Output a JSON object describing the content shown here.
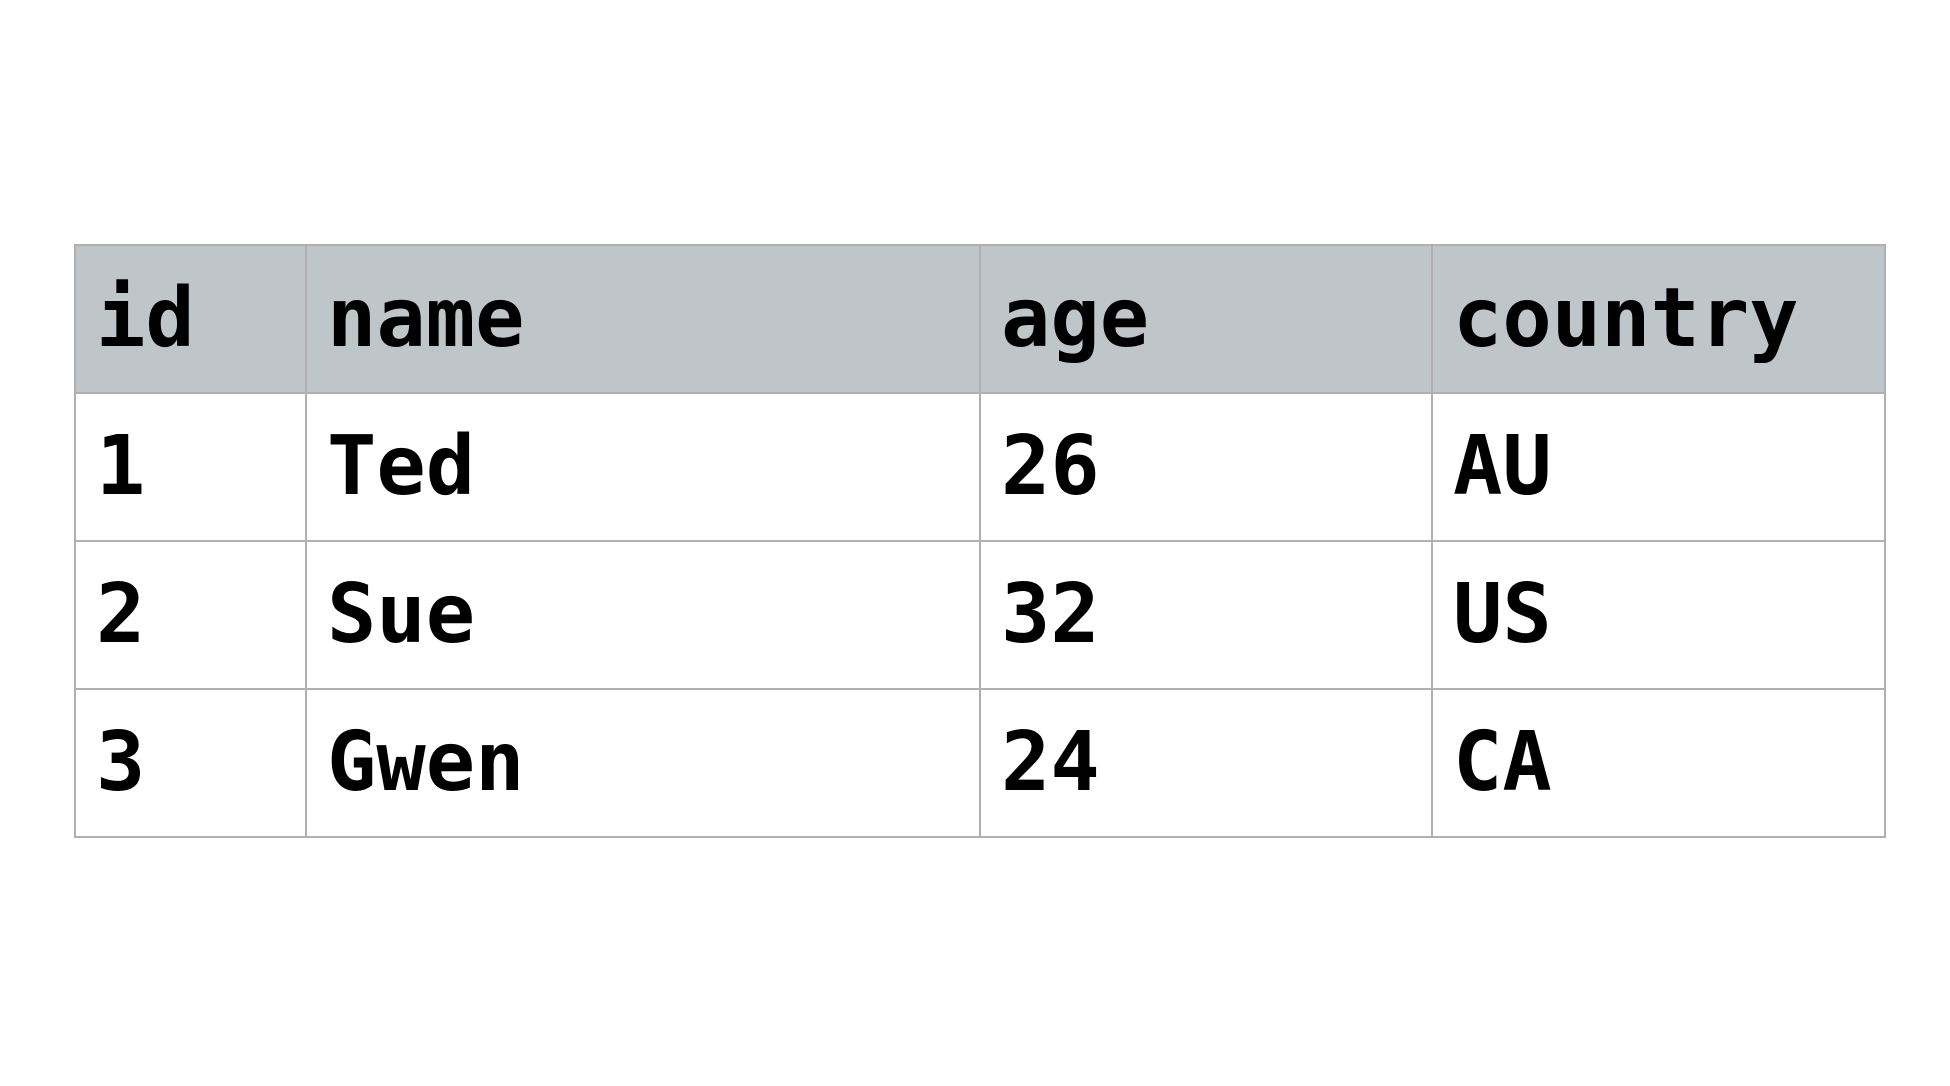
{
  "table": {
    "columns": [
      "id",
      "name",
      "age",
      "country"
    ],
    "rows": [
      [
        "1",
        "Ted",
        "26",
        "AU"
      ],
      [
        "2",
        "Sue",
        "32",
        "US"
      ],
      [
        "3",
        "Gwen",
        "24",
        "CA"
      ]
    ]
  },
  "colors": {
    "header_background": "#bfc6c9",
    "border": "#b0b0b0",
    "text": "#000000"
  }
}
